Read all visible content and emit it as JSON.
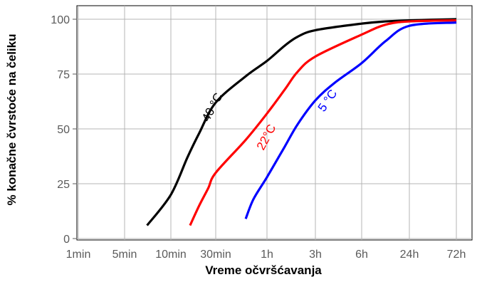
{
  "chart_data": {
    "type": "line",
    "title": "",
    "xlabel": "Vreme očvršćavanja",
    "ylabel": "% konačne čvrstoće na čeliku",
    "x_scale": "log",
    "x_unit": "minutes",
    "x_ticks": [
      {
        "label": "1min",
        "value": 1
      },
      {
        "label": "5min",
        "value": 5
      },
      {
        "label": "10min",
        "value": 10
      },
      {
        "label": "30min",
        "value": 30
      },
      {
        "label": "1h",
        "value": 60
      },
      {
        "label": "3h",
        "value": 180
      },
      {
        "label": "6h",
        "value": 360
      },
      {
        "label": "24h",
        "value": 1440
      },
      {
        "label": "72h",
        "value": 4320
      }
    ],
    "y_ticks": [
      0,
      25,
      50,
      75,
      100
    ],
    "ylim": [
      0,
      100
    ],
    "grid": true,
    "series": [
      {
        "name": "40 °C",
        "color": "#000000",
        "x": [
          7,
          10,
          15,
          20,
          30,
          45,
          60,
          90,
          120,
          180,
          360,
          720,
          1440,
          4320
        ],
        "y": [
          6,
          20,
          37,
          48,
          62,
          74,
          81,
          88,
          92,
          95,
          98,
          99,
          99.5,
          100
        ]
      },
      {
        "name": "22°C",
        "color": "#ff0000",
        "x": [
          16,
          20,
          25,
          30,
          45,
          60,
          90,
          120,
          180,
          360,
          720,
          1440,
          4320
        ],
        "y": [
          6,
          15,
          23,
          30,
          45,
          57,
          68,
          76,
          83,
          93,
          97.5,
          99,
          99.5
        ]
      },
      {
        "name": "5 °C",
        "color": "#0000ff",
        "x": [
          45,
          50,
          60,
          90,
          120,
          180,
          240,
          360,
          720,
          1440,
          4320
        ],
        "y": [
          9,
          18,
          28,
          42,
          52,
          63,
          71,
          80,
          90,
          97,
          98.5
        ]
      }
    ]
  }
}
